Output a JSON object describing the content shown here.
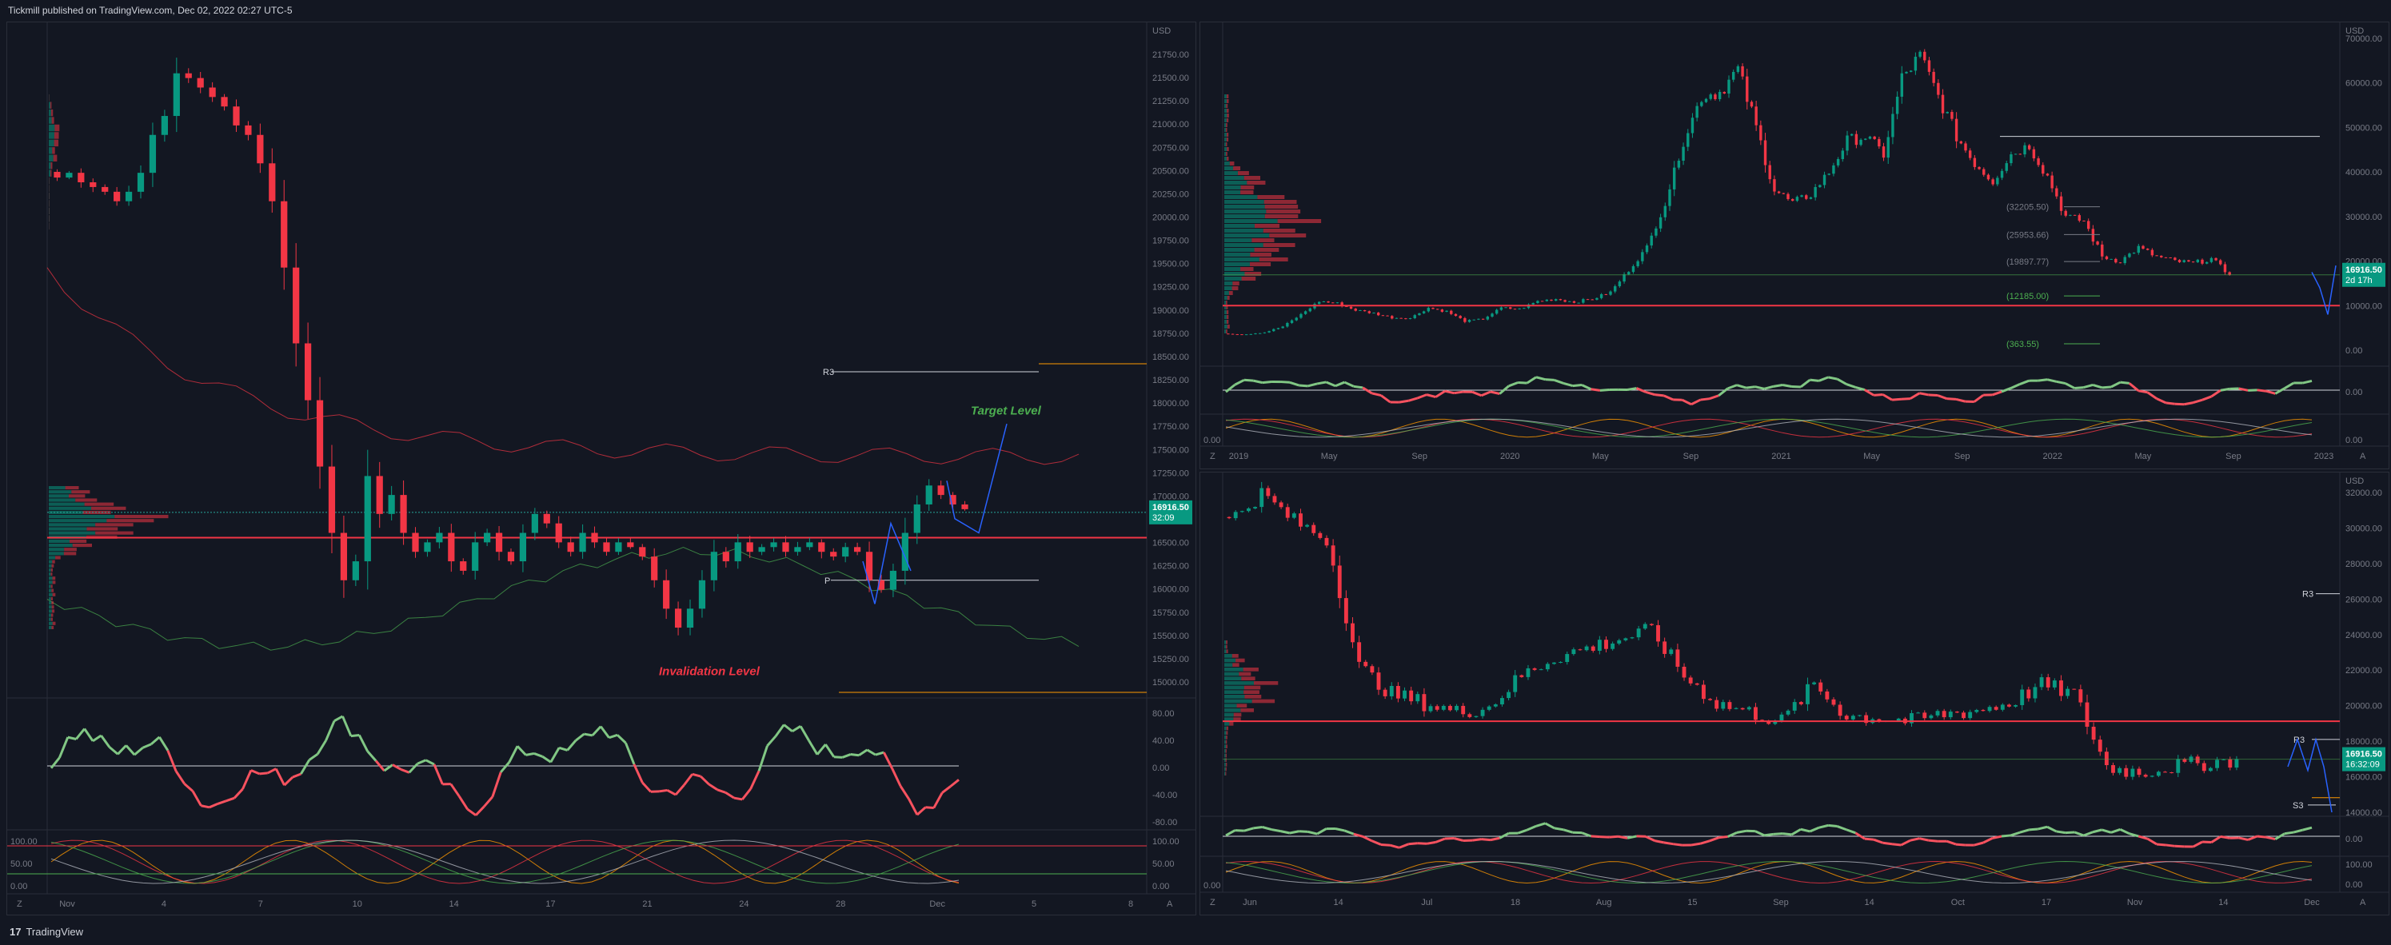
{
  "header": {
    "published_text": "Tickmill published on TradingView.com, Dec 02, 2022 02:27 UTC-5"
  },
  "footer": {
    "brand": "TradingView",
    "logo_glyph": "17"
  },
  "colors": {
    "bg": "#131722",
    "up": "#089981",
    "down": "#f23645",
    "green_line": "#4caf50",
    "red_line": "#f23645",
    "grid": "#1e222d",
    "price_badge": "#089981",
    "orange": "#ff9800",
    "blue": "#2962ff",
    "target_green": "#4caf50",
    "invalid_red": "#f23645"
  },
  "panes": {
    "left": {
      "currency": "USD",
      "y_ticks": [
        "21750.00",
        "21500.00",
        "21250.00",
        "21000.00",
        "20750.00",
        "20500.00",
        "20250.00",
        "20000.00",
        "19750.00",
        "19500.00",
        "19250.00",
        "19000.00",
        "18750.00",
        "18500.00",
        "18250.00",
        "18000.00",
        "17750.00",
        "17500.00",
        "17250.00",
        "17000.00",
        "16750.00",
        "16500.00",
        "16250.00",
        "16000.00",
        "15750.00",
        "15500.00",
        "15250.00",
        "15000.00"
      ],
      "x_ticks": [
        "Nov",
        "4",
        "7",
        "10",
        "14",
        "17",
        "21",
        "24",
        "28",
        "Dec",
        "5",
        "8"
      ],
      "price_badge": {
        "price": "16916.50",
        "countdown": "32:09"
      },
      "pivot_labels": {
        "r3": "R3",
        "p": "P"
      },
      "annotations": {
        "target": "Target Level",
        "invalidation": "Invalidation Level"
      },
      "osc_ticks": [
        "80.00",
        "40.00",
        "0.00",
        "-40.00",
        "-80.00"
      ],
      "stoch_ticks": [
        "100.00",
        "50.00",
        "0.00"
      ],
      "stoch_left_ticks": [
        "100.00",
        "50.00",
        "0.00"
      ],
      "bottom_icons": {
        "left": "Z",
        "right": "A"
      }
    },
    "top_right": {
      "currency": "USD",
      "y_ticks": [
        "70000.00",
        "60000.00",
        "50000.00",
        "40000.00",
        "30000.00",
        "20000.00",
        "10000.00",
        "0.00"
      ],
      "x_ticks": [
        "2019",
        "May",
        "Sep",
        "2020",
        "May",
        "Sep",
        "2021",
        "May",
        "Sep",
        "2022",
        "May",
        "Sep",
        "2023"
      ],
      "price_badge": {
        "price": "16916.50",
        "countdown": "2d 17h"
      },
      "fib_labels": [
        "(32205.50)",
        "(25953.66)",
        "(19897.77)",
        "(12185.00)",
        "(363.55)"
      ],
      "osc_ticks": [
        "0.00"
      ],
      "stoch_ticks": [
        "0.00"
      ],
      "stoch_left_ticks": [
        "0.00"
      ],
      "bottom_icons": {
        "left": "Z",
        "right": "A"
      }
    },
    "bottom_right": {
      "currency": "USD",
      "y_ticks": [
        "32000.00",
        "30000.00",
        "28000.00",
        "26000.00",
        "24000.00",
        "22000.00",
        "20000.00",
        "18000.00",
        "16000.00",
        "14000.00"
      ],
      "x_ticks": [
        "Jun",
        "14",
        "Jul",
        "18",
        "Aug",
        "15",
        "Sep",
        "14",
        "Oct",
        "17",
        "Nov",
        "14",
        "Dec"
      ],
      "price_badge": {
        "price": "16916.50",
        "countdown": "16:32:09"
      },
      "pivot_labels": {
        "r3": "R3",
        "r3b": "R3",
        "s3": "S3"
      },
      "osc_ticks": [
        "0.00"
      ],
      "stoch_ticks": [
        "100.00",
        "0.00"
      ],
      "stoch_left_ticks": [
        "0.00"
      ],
      "bottom_icons": {
        "left": "Z",
        "right": "A"
      }
    }
  },
  "chart_data": [
    {
      "type": "candlestick",
      "title": "",
      "timeframe_hint": "4H, Nov–Dec 2022",
      "x_range": [
        "Nov",
        "Dec 8"
      ],
      "ylim": [
        15000,
        21750
      ],
      "closes": [
        20450,
        20500,
        20400,
        20350,
        20300,
        20200,
        20300,
        20500,
        20900,
        21100,
        21550,
        21500,
        21400,
        21300,
        21200,
        21000,
        20900,
        20600,
        20200,
        19500,
        18700,
        18100,
        17400,
        16700,
        16200,
        16400,
        17300,
        16900,
        17100,
        16700,
        16500,
        16600,
        16700,
        16400,
        16300,
        16600,
        16700,
        16500,
        16400,
        16700,
        16900,
        16800,
        16600,
        16500,
        16700,
        16600,
        16500,
        16600,
        16550,
        16450,
        16200,
        15900,
        15700,
        15900,
        16200,
        16500,
        16400,
        16600,
        16500,
        16550,
        16600,
        16500,
        16550,
        16600,
        16500,
        16450,
        16550,
        16500,
        16200,
        16100,
        16300,
        16700,
        17000,
        17200,
        17100,
        17000,
        16950
      ],
      "lines": {
        "current_price": 16916.5,
        "support_red": 16650,
        "r3": 18400,
        "p": 16200
      },
      "annotations": [
        "Target Level",
        "Invalidation Level"
      ]
    },
    {
      "type": "candlestick",
      "title": "",
      "timeframe_hint": "Weekly, 2019–2022",
      "ylim": [
        0,
        70000
      ],
      "lines": {
        "current_price": 16916.5,
        "support_red": 10000
      },
      "fib_levels": [
        32205.5,
        25953.66,
        19897.77,
        12185.0,
        363.55
      ]
    },
    {
      "type": "candlestick",
      "title": "",
      "timeframe_hint": "Daily, Jun–Dec 2022",
      "ylim": [
        14000,
        32000
      ],
      "lines": {
        "current_price": 16916.5,
        "support_red": 19000,
        "r3": 26000
      }
    }
  ]
}
